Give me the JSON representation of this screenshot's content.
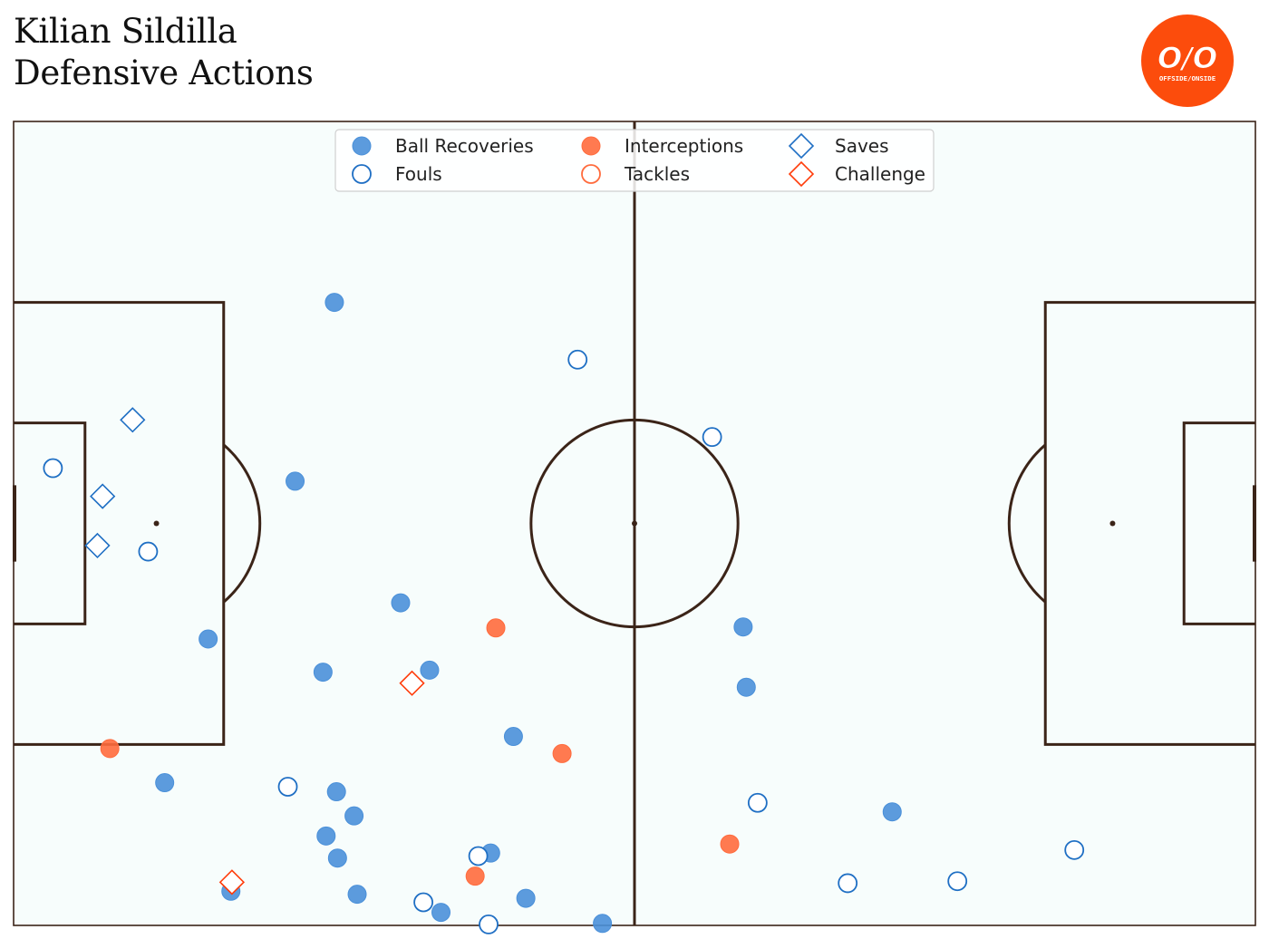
{
  "title": {
    "line1": "Kilian Sildilla",
    "line2": "Defensive Actions"
  },
  "logo": {
    "text": "O/O",
    "subtext": "OFFSIDE/ONSIDE",
    "color": "#fc4c0c"
  },
  "chart_data": {
    "type": "scatter",
    "pitch": {
      "length": 120,
      "width": 80,
      "background": "#f7fdfc",
      "line_color": "#3b2418"
    },
    "legend": {
      "placement": "top-center",
      "columns": 3
    },
    "series": [
      {
        "name": "Ball Recoveries",
        "marker": "circle",
        "filled": true,
        "color": "#4a90d9",
        "points": [
          [
            31,
            18
          ],
          [
            27.2,
            35.8
          ],
          [
            37.4,
            47.9
          ],
          [
            40.2,
            54.6
          ],
          [
            29.9,
            54.8
          ],
          [
            18.8,
            51.5
          ],
          [
            48.3,
            61.2
          ],
          [
            14.6,
            65.8
          ],
          [
            31.2,
            66.7
          ],
          [
            32.9,
            69.1
          ],
          [
            30.2,
            71.1
          ],
          [
            46.1,
            72.8
          ],
          [
            31.3,
            73.3
          ],
          [
            21.0,
            76.6
          ],
          [
            33.2,
            76.9
          ],
          [
            49.5,
            77.3
          ],
          [
            41.3,
            78.7
          ],
          [
            56.9,
            79.8
          ],
          [
            70.5,
            50.3
          ],
          [
            70.8,
            56.3
          ],
          [
            84.9,
            68.7
          ]
        ]
      },
      {
        "name": "Fouls",
        "marker": "circle",
        "filled": false,
        "color": "#1f6fc4",
        "points": [
          [
            54.5,
            23.7
          ],
          [
            67.5,
            31.4
          ],
          [
            3.8,
            34.5
          ],
          [
            13.0,
            42.8
          ],
          [
            26.5,
            66.2
          ],
          [
            44.9,
            73.1
          ],
          [
            39.6,
            77.7
          ],
          [
            45.9,
            79.9
          ],
          [
            71.9,
            67.8
          ],
          [
            80.6,
            75.8
          ],
          [
            91.2,
            75.6
          ],
          [
            102.5,
            72.5
          ]
        ]
      },
      {
        "name": "Interceptions",
        "marker": "circle",
        "filled": true,
        "color": "#ff6b3d",
        "points": [
          [
            46.6,
            50.4
          ],
          [
            9.3,
            62.4
          ],
          [
            53.0,
            62.9
          ],
          [
            44.6,
            75.1
          ],
          [
            69.2,
            71.9
          ]
        ]
      },
      {
        "name": "Tackles",
        "marker": "circle",
        "filled": false,
        "color": "#ff6b3d",
        "points": []
      },
      {
        "name": "Saves",
        "marker": "diamond",
        "filled": false,
        "color": "#1f6fc4",
        "points": [
          [
            11.5,
            29.7
          ],
          [
            8.6,
            37.3
          ],
          [
            8.1,
            42.2
          ]
        ]
      },
      {
        "name": "Challenge",
        "marker": "diamond",
        "filled": false,
        "color": "#ff3c0a",
        "points": [
          [
            38.5,
            55.9
          ],
          [
            21.1,
            75.7
          ]
        ]
      }
    ]
  }
}
